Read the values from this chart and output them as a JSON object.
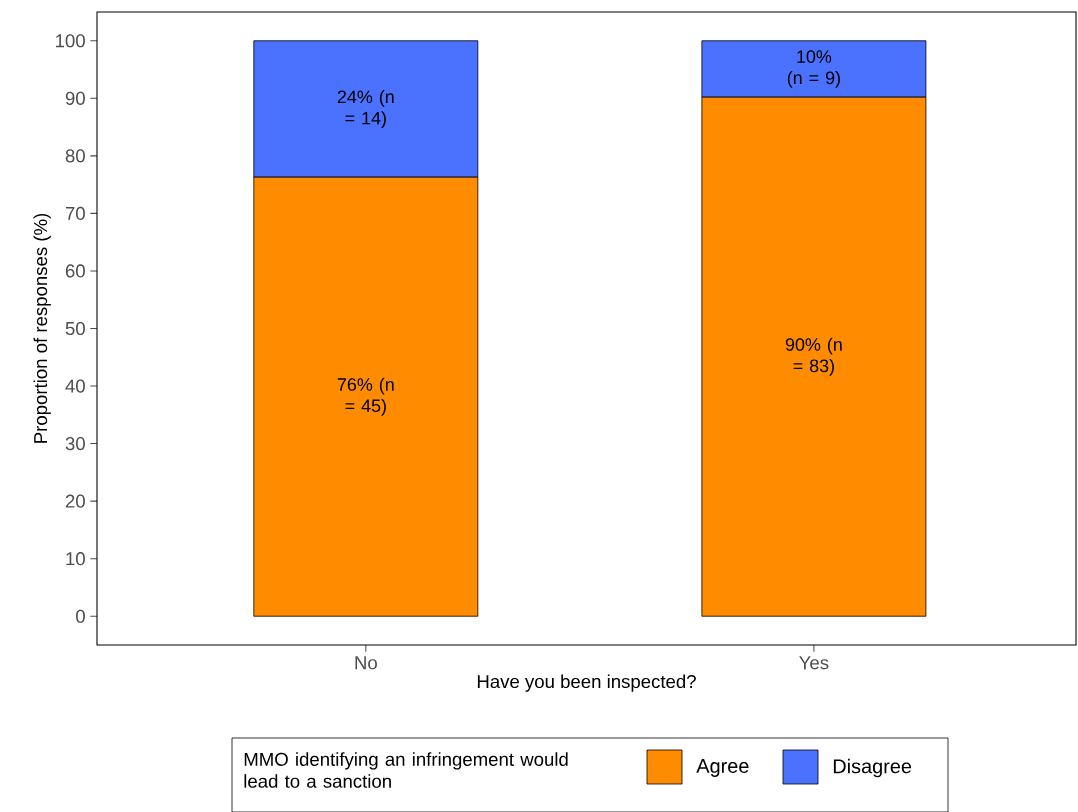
{
  "chart_data": {
    "type": "bar",
    "stacked": true,
    "xlabel": "Have you been inspected?",
    "ylabel": "Proportion of responses (%)",
    "legend_title": "MMO identifying an infringement would lead to a sanction",
    "legend": "bottom",
    "categories": [
      "No",
      "Yes"
    ],
    "series": [
      {
        "name": "Agree",
        "color": "#ff8c00",
        "values": [
          76.3,
          90.2
        ],
        "value_labels": [
          "76% (n = 45)",
          "90% (n = 83)"
        ]
      },
      {
        "name": "Disagree",
        "color": "#4a72ff",
        "values": [
          23.7,
          9.8
        ],
        "value_labels": [
          "24% (n = 14)",
          "10% (n = 9)"
        ]
      }
    ],
    "ylim": [
      -5,
      105
    ],
    "yticks": [
      0,
      10,
      20,
      30,
      40,
      50,
      60,
      70,
      80,
      90,
      100
    ]
  }
}
